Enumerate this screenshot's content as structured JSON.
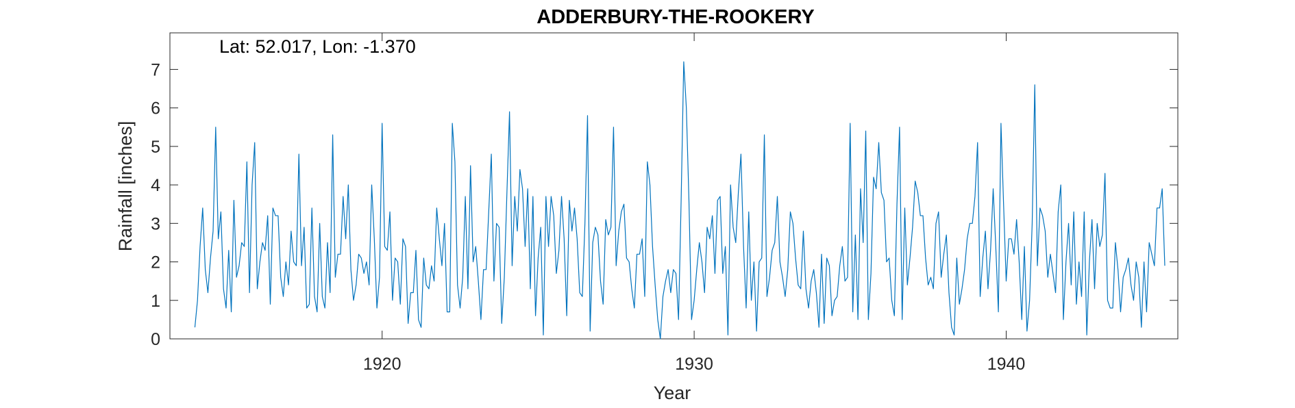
{
  "chart_data": {
    "type": "line",
    "title": "ADDERBURY-THE-ROOKERY",
    "annotation": "Lat: 52.017, Lon: -1.370",
    "xlabel": "Year",
    "ylabel": "Rainfall [inches]",
    "xlim": [
      1913.2,
      1945.5
    ],
    "ylim": [
      0,
      7.95
    ],
    "xticks": [
      1920,
      1930,
      1940
    ],
    "xtick_labels": [
      "1920",
      "1930",
      "1940"
    ],
    "yticks": [
      0,
      1,
      2,
      3,
      4,
      5,
      6,
      7
    ],
    "ytick_labels": [
      "0",
      "1",
      "2",
      "3",
      "4",
      "5",
      "6",
      "7"
    ],
    "grid": false,
    "legend": "none",
    "line_color": "#0072BD",
    "series": [
      {
        "x_start": 1914.0,
        "x_step": 0.08333,
        "values": [
          0.3,
          1.0,
          2.4,
          3.4,
          1.8,
          1.2,
          2.1,
          2.8,
          5.5,
          2.6,
          3.3,
          1.3,
          0.8,
          2.3,
          0.7,
          3.6,
          1.6,
          1.9,
          2.5,
          2.4,
          4.6,
          1.2,
          4.0,
          5.1,
          1.3,
          2.0,
          2.5,
          2.3,
          3.2,
          0.9,
          3.4,
          3.2,
          3.2,
          1.6,
          1.1,
          2.0,
          1.4,
          2.8,
          2.0,
          1.9,
          4.8,
          1.9,
          2.9,
          0.8,
          0.9,
          3.4,
          1.1,
          0.7,
          3.0,
          1.1,
          0.8,
          2.5,
          1.2,
          5.3,
          1.6,
          2.2,
          2.2,
          3.7,
          2.6,
          4.0,
          1.8,
          1.0,
          1.4,
          2.2,
          2.1,
          1.7,
          2.0,
          1.4,
          4.0,
          2.6,
          0.8,
          1.6,
          5.6,
          2.4,
          2.3,
          3.3,
          1.0,
          2.1,
          2.0,
          0.9,
          2.6,
          2.4,
          0.4,
          1.2,
          1.2,
          2.3,
          0.5,
          0.3,
          2.1,
          1.4,
          1.3,
          1.9,
          1.5,
          3.4,
          2.6,
          1.9,
          3.0,
          0.7,
          0.7,
          5.6,
          4.6,
          1.4,
          0.8,
          1.6,
          3.7,
          1.3,
          4.5,
          2.0,
          2.4,
          1.5,
          0.5,
          1.8,
          1.8,
          3.3,
          4.8,
          1.5,
          3.0,
          2.9,
          0.4,
          1.6,
          3.8,
          5.9,
          1.9,
          3.7,
          2.8,
          4.4,
          3.9,
          2.4,
          3.9,
          1.3,
          3.7,
          0.6,
          2.1,
          2.9,
          0.1,
          3.7,
          2.4,
          3.7,
          3.2,
          1.7,
          2.3,
          3.7,
          2.6,
          0.6,
          3.6,
          2.8,
          3.4,
          2.6,
          1.2,
          1.1,
          3.0,
          5.8,
          0.2,
          2.5,
          2.9,
          2.7,
          1.5,
          0.9,
          3.1,
          2.7,
          2.9,
          5.5,
          1.9,
          2.8,
          3.3,
          3.5,
          2.1,
          2.0,
          1.3,
          0.8,
          2.2,
          2.2,
          2.6,
          1.1,
          4.6,
          4.0,
          2.4,
          1.4,
          0.5,
          0.0,
          1.1,
          1.5,
          1.8,
          1.2,
          1.8,
          1.7,
          0.5,
          3.6,
          7.2,
          6.0,
          3.6,
          0.5,
          1.0,
          1.8,
          2.5,
          2.0,
          1.2,
          2.9,
          2.6,
          3.2,
          1.7,
          3.6,
          3.7,
          1.7,
          2.4,
          0.1,
          4.0,
          2.9,
          2.5,
          3.8,
          4.8,
          2.4,
          0.8,
          3.3,
          1.0,
          2.0,
          0.2,
          2.0,
          2.1,
          5.3,
          1.1,
          1.6,
          2.3,
          2.5,
          3.7,
          2.0,
          1.6,
          1.1,
          1.8,
          3.3,
          3.0,
          2.1,
          1.4,
          1.3,
          2.8,
          1.3,
          0.8,
          1.5,
          1.8,
          1.2,
          0.3,
          2.2,
          0.4,
          2.1,
          1.9,
          0.6,
          1.0,
          1.1,
          1.9,
          2.4,
          1.5,
          1.6,
          5.6,
          0.7,
          2.7,
          0.5,
          3.9,
          2.5,
          5.4,
          0.5,
          1.7,
          4.2,
          3.9,
          5.1,
          3.8,
          3.6,
          2.0,
          2.1,
          1.0,
          0.6,
          3.5,
          5.5,
          0.5,
          3.4,
          1.4,
          2.1,
          2.9,
          4.1,
          3.8,
          3.2,
          3.2,
          2.1,
          1.4,
          1.6,
          1.3,
          3.0,
          3.3,
          1.6,
          2.2,
          2.7,
          1.2,
          0.3,
          0.1,
          2.1,
          0.9,
          1.3,
          1.8,
          2.6,
          3.0,
          3.0,
          3.7,
          5.1,
          1.1,
          2.1,
          2.8,
          1.3,
          2.3,
          3.9,
          2.4,
          0.7,
          5.6,
          3.5,
          1.5,
          2.6,
          2.6,
          2.2,
          3.1,
          2.0,
          0.5,
          2.4,
          0.2,
          1.0,
          3.0,
          6.6,
          1.9,
          3.4,
          3.2,
          2.8,
          1.6,
          2.2,
          1.7,
          1.2,
          3.3,
          4.0,
          0.5,
          2.0,
          3.0,
          1.4,
          3.3,
          0.9,
          2.0,
          1.1,
          3.3,
          0.1,
          2.0,
          3.1,
          1.3,
          3.0,
          2.4,
          2.7,
          4.3,
          1.0,
          0.8,
          0.8,
          2.5,
          1.8,
          0.7,
          1.6,
          1.8,
          2.1,
          1.4,
          1.0,
          2.0,
          1.6,
          0.3,
          2.0,
          0.7,
          2.5,
          2.2,
          1.9,
          3.4,
          3.4,
          3.9,
          1.9
        ]
      }
    ]
  }
}
